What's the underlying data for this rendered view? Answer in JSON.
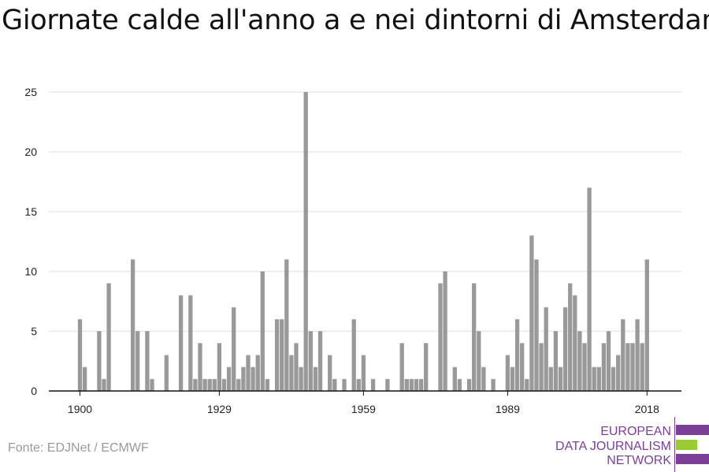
{
  "title": "Giornate calde all'anno a e nei dintorni di Amsterdam",
  "source": "Fonte: EDJNet / ECMWF",
  "logo": {
    "line1": "EUROPEAN",
    "line2": "DATA JOURNALISM",
    "line3": "NETWORK",
    "colors": {
      "primary": "#7b3f98",
      "accent": "#99cc33"
    }
  },
  "colors": {
    "bars": "#999999",
    "grid": "#dddddd",
    "axis": "#111111"
  },
  "chart_data": {
    "type": "bar",
    "title": "Giornate calde all'anno a e nei dintorni di Amsterdam",
    "xlabel": "",
    "ylabel": "",
    "x_ticks": [
      1900,
      1929,
      1959,
      1989,
      2018
    ],
    "y_ticks": [
      0,
      5,
      10,
      15,
      20,
      25
    ],
    "ylim": [
      0,
      25
    ],
    "grid": true,
    "x": [
      1900,
      1901,
      1902,
      1903,
      1904,
      1905,
      1906,
      1907,
      1908,
      1909,
      1910,
      1911,
      1912,
      1913,
      1914,
      1915,
      1916,
      1917,
      1918,
      1919,
      1920,
      1921,
      1922,
      1923,
      1924,
      1925,
      1926,
      1927,
      1928,
      1929,
      1930,
      1931,
      1932,
      1933,
      1934,
      1935,
      1936,
      1937,
      1938,
      1939,
      1940,
      1941,
      1942,
      1943,
      1944,
      1945,
      1946,
      1947,
      1948,
      1949,
      1950,
      1951,
      1952,
      1953,
      1954,
      1955,
      1956,
      1957,
      1958,
      1959,
      1960,
      1961,
      1962,
      1963,
      1964,
      1965,
      1966,
      1967,
      1968,
      1969,
      1970,
      1971,
      1972,
      1973,
      1974,
      1975,
      1976,
      1977,
      1978,
      1979,
      1980,
      1981,
      1982,
      1983,
      1984,
      1985,
      1986,
      1987,
      1988,
      1989,
      1990,
      1991,
      1992,
      1993,
      1994,
      1995,
      1996,
      1997,
      1998,
      1999,
      2000,
      2001,
      2002,
      2003,
      2004,
      2005,
      2006,
      2007,
      2008,
      2009,
      2010,
      2011,
      2012,
      2013,
      2014,
      2015,
      2016,
      2017,
      2018
    ],
    "values": [
      6,
      2,
      0,
      0,
      5,
      1,
      9,
      0,
      0,
      0,
      0,
      11,
      5,
      0,
      5,
      1,
      0,
      0,
      3,
      0,
      0,
      8,
      0,
      8,
      1,
      4,
      1,
      1,
      1,
      4,
      1,
      2,
      7,
      1,
      2,
      3,
      2,
      3,
      10,
      1,
      0,
      6,
      6,
      11,
      3,
      4,
      2,
      25,
      5,
      2,
      5,
      0,
      3,
      1,
      0,
      1,
      0,
      6,
      1,
      3,
      0,
      1,
      0,
      0,
      1,
      0,
      0,
      4,
      1,
      1,
      1,
      1,
      4,
      0,
      0,
      9,
      10,
      0,
      2,
      1,
      0,
      1,
      9,
      5,
      2,
      0,
      1,
      0,
      0,
      3,
      2,
      6,
      4,
      1,
      13,
      11,
      4,
      7,
      2,
      5,
      2,
      7,
      9,
      8,
      5,
      4,
      17,
      2,
      2,
      4,
      5,
      2,
      3,
      6,
      4,
      4,
      6,
      4,
      11
    ]
  }
}
